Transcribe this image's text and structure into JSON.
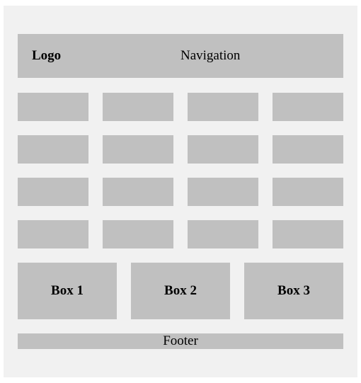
{
  "header": {
    "logo": "Logo",
    "navigation": "Navigation"
  },
  "grid": {
    "rows": 4,
    "columns": 4
  },
  "boxes": [
    "Box 1",
    "Box 2",
    "Box 3"
  ],
  "footer": "Footer",
  "colors": {
    "page_background": "#f1f1f1",
    "block_fill": "#c0c0c0",
    "text": "#000000"
  }
}
